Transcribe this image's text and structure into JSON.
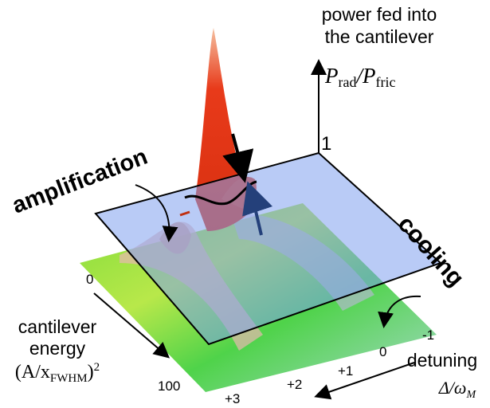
{
  "vertical_axis": {
    "caption": [
      "power fed into",
      "the cantilever"
    ],
    "symbol": {
      "p1": "P",
      "s1": "rad",
      "p2": "/P",
      "s2": "fric"
    },
    "tick": "1"
  },
  "annotations": {
    "left": "amplification",
    "right": "cooling"
  },
  "energy_axis": {
    "ticks": [
      "0",
      "100"
    ],
    "caption": [
      "cantilever",
      "energy"
    ],
    "symbol": {
      "open": "(A/x",
      "sub": "FWHM",
      "close": ")",
      "sup": "2"
    }
  },
  "detuning_axis": {
    "ticks": [
      "+3",
      "+2",
      "+1",
      "0",
      "-1"
    ],
    "caption": "detuning",
    "symbol": {
      "main": "Δ/ω",
      "sub": "M"
    }
  }
}
